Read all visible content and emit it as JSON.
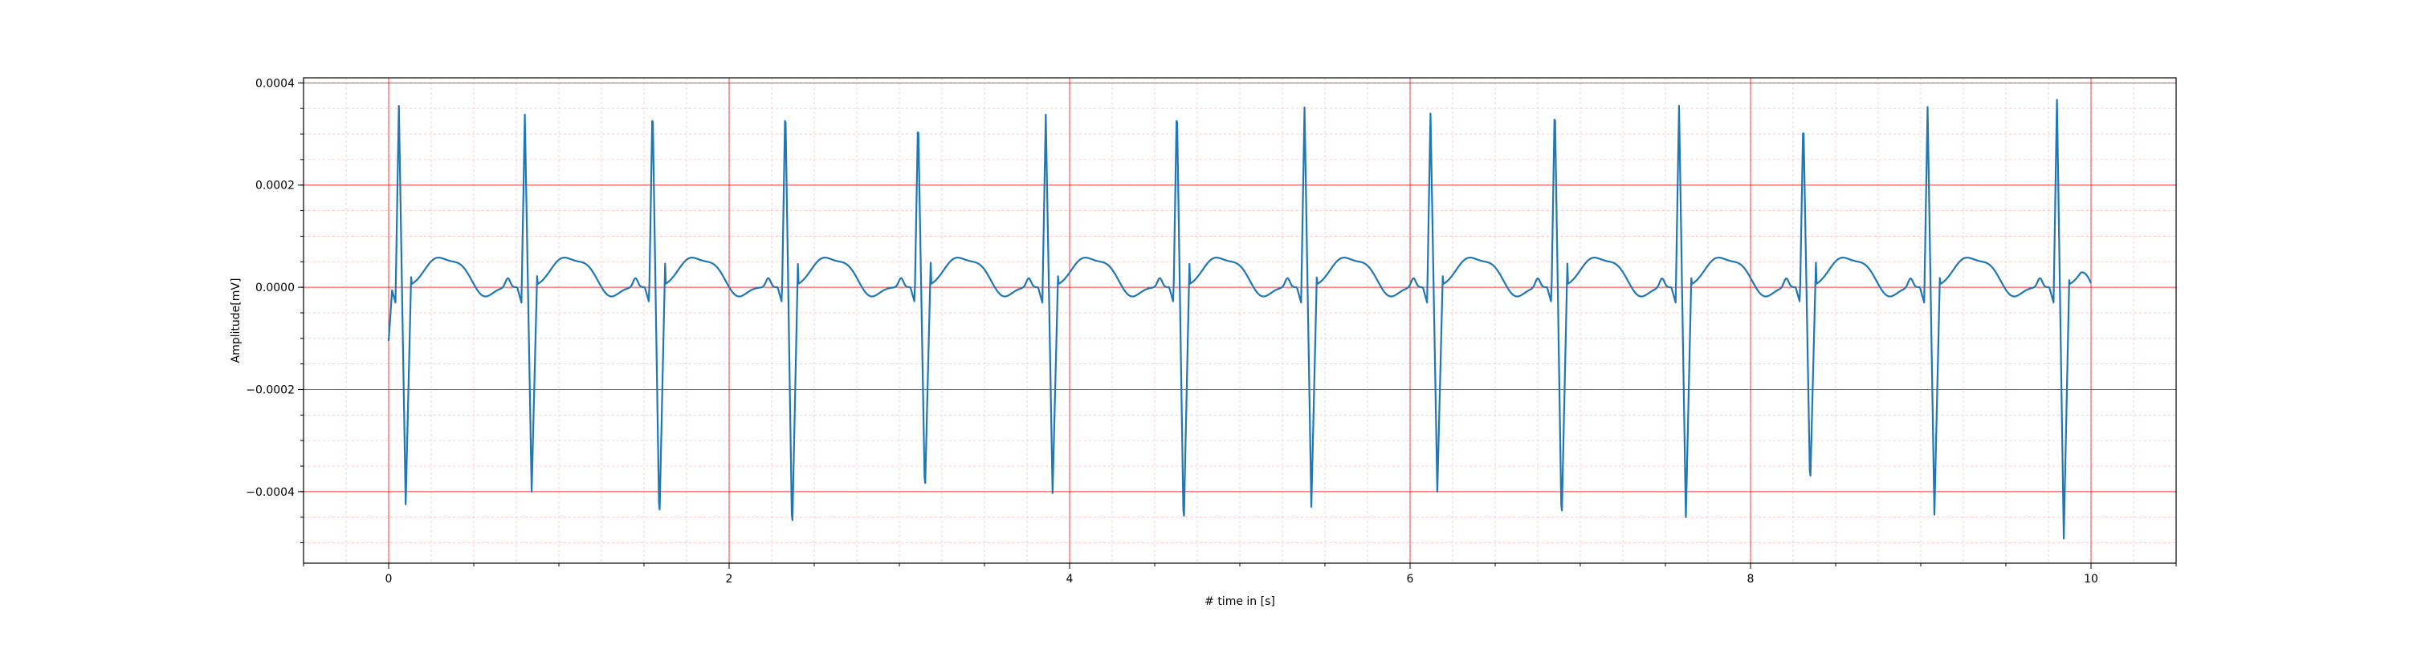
{
  "chart_data": {
    "type": "line",
    "title": "",
    "xlabel": "# time in [s]",
    "ylabel": "Amplitude[mV]",
    "xlim": [
      -0.5,
      10.5
    ],
    "ylim": [
      -0.00054,
      0.00041
    ],
    "x_ticks": [
      0,
      2,
      4,
      6,
      8,
      10
    ],
    "x_tick_labels": [
      "0",
      "2",
      "4",
      "6",
      "8",
      "10"
    ],
    "y_ticks": [
      0.0004,
      0.0002,
      0.0,
      -0.0002,
      -0.0004
    ],
    "y_tick_labels": [
      "0.0004",
      "0.0002",
      "0.0000",
      "−0.0002",
      "−0.0004"
    ],
    "grid": "major red, minor light red",
    "colors": {
      "line": "#1f77b4",
      "major_grid": "#ff0000",
      "minor_grid": "#ffc0c0"
    },
    "beats": [
      {
        "r_time": 0.06,
        "r_peak": 0.000355,
        "s_min": -0.000425
      },
      {
        "r_time": 0.8,
        "r_peak": 0.000338,
        "s_min": -0.0004
      },
      {
        "r_time": 1.55,
        "r_peak": 0.000365,
        "s_min": -0.000465
      },
      {
        "r_time": 2.33,
        "r_peak": 0.000365,
        "s_min": -0.000487
      },
      {
        "r_time": 3.11,
        "r_peak": 0.00034,
        "s_min": -0.00041
      },
      {
        "r_time": 3.86,
        "r_peak": 0.000338,
        "s_min": -0.000403
      },
      {
        "r_time": 4.63,
        "r_peak": 0.000365,
        "s_min": -0.000478
      },
      {
        "r_time": 5.38,
        "r_peak": 0.000352,
        "s_min": -0.00043
      },
      {
        "r_time": 6.12,
        "r_peak": 0.00034,
        "s_min": -0.0004
      },
      {
        "r_time": 6.85,
        "r_peak": 0.000368,
        "s_min": -0.000467
      },
      {
        "r_time": 7.58,
        "r_peak": 0.000355,
        "s_min": -0.00045
      },
      {
        "r_time": 8.31,
        "r_peak": 0.000338,
        "s_min": -0.000395
      },
      {
        "r_time": 9.04,
        "r_peak": 0.000353,
        "s_min": -0.000445
      },
      {
        "r_time": 9.8,
        "r_peak": 0.000367,
        "s_min": -0.000492
      }
    ],
    "series": [
      {
        "x_start": 0.0,
        "x_end": 10.0,
        "start_value": -0.000105,
        "end_value": 8e-06
      }
    ]
  }
}
